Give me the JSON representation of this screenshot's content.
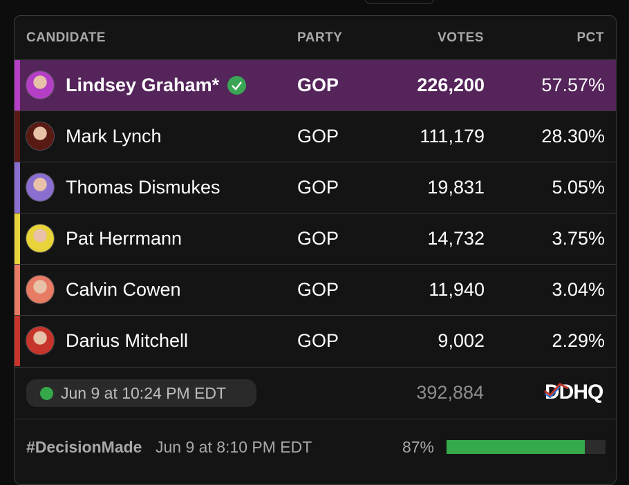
{
  "table": {
    "headers": [
      "CANDIDATE",
      "PARTY",
      "VOTES",
      "PCT"
    ],
    "rows": [
      {
        "name": "Lindsey Graham*",
        "party": "GOP",
        "votes": "226,200",
        "pct": "57.57%",
        "color": "#b43fc6",
        "winner": true
      },
      {
        "name": "Mark Lynch",
        "party": "GOP",
        "votes": "111,179",
        "pct": "28.30%",
        "color": "#5a1a14",
        "winner": false
      },
      {
        "name": "Thomas Dismukes",
        "party": "GOP",
        "votes": "19,831",
        "pct": "5.05%",
        "color": "#8a6fd0",
        "winner": false
      },
      {
        "name": "Pat Herrmann",
        "party": "GOP",
        "votes": "14,732",
        "pct": "3.75%",
        "color": "#e8d33a",
        "winner": false
      },
      {
        "name": "Calvin Cowen",
        "party": "GOP",
        "votes": "11,940",
        "pct": "3.04%",
        "color": "#e77b64",
        "winner": false
      },
      {
        "name": "Darius Mitchell",
        "party": "GOP",
        "votes": "9,002",
        "pct": "2.29%",
        "color": "#c7342b",
        "winner": false
      }
    ]
  },
  "footer": {
    "updated": "Jun 9 at 10:24 PM EDT",
    "total_votes": "392,884",
    "logo": "DDHQ",
    "decision_tag": "#DecisionMade",
    "decision_time": "Jun 9 at 8:10 PM EDT",
    "reporting": {
      "value": 87,
      "label": "87%"
    }
  }
}
